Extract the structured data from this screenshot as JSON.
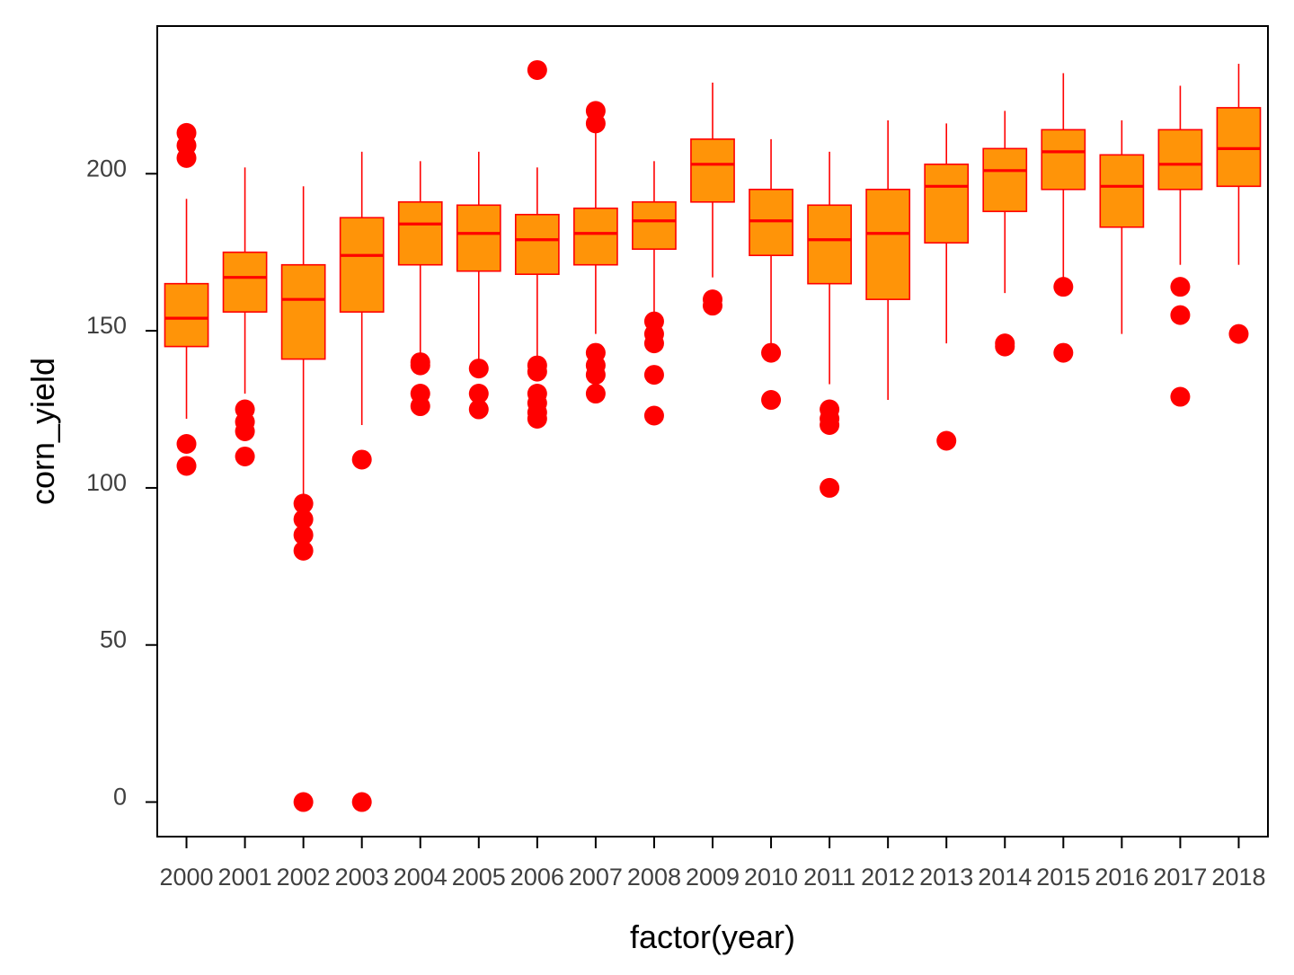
{
  "chart_data": {
    "type": "boxplot",
    "title": "",
    "xlabel": "factor(year)",
    "ylabel": "corn_yield",
    "ylim": [
      -11,
      247
    ],
    "yticks": [
      0,
      50,
      100,
      150,
      200
    ],
    "grid": false,
    "legend": "none",
    "colors": {
      "box_fill": "#ff9408",
      "box_stroke": "#ff0000",
      "outlier": "#ff0000",
      "frame": "#000000",
      "tick_label": "#404040"
    },
    "categories": [
      "2000",
      "2001",
      "2002",
      "2003",
      "2004",
      "2005",
      "2006",
      "2007",
      "2008",
      "2009",
      "2010",
      "2011",
      "2012",
      "2013",
      "2014",
      "2015",
      "2016",
      "2017",
      "2018"
    ],
    "boxes": [
      {
        "q1": 145,
        "median": 154,
        "q3": 165,
        "whisker_low": 122,
        "whisker_high": 192,
        "outliers": [
          107,
          114,
          205,
          209,
          213
        ]
      },
      {
        "q1": 156,
        "median": 167,
        "q3": 175,
        "whisker_low": 130,
        "whisker_high": 202,
        "outliers": [
          110,
          118,
          121,
          125
        ]
      },
      {
        "q1": 141,
        "median": 160,
        "q3": 171,
        "whisker_low": 97,
        "whisker_high": 196,
        "outliers": [
          0,
          80,
          85,
          90,
          95
        ]
      },
      {
        "q1": 156,
        "median": 174,
        "q3": 186,
        "whisker_low": 120,
        "whisker_high": 207,
        "outliers": [
          0,
          109
        ]
      },
      {
        "q1": 171,
        "median": 184,
        "q3": 191,
        "whisker_low": 142,
        "whisker_high": 204,
        "outliers": [
          126,
          130,
          139,
          140
        ]
      },
      {
        "q1": 169,
        "median": 181,
        "q3": 190,
        "whisker_low": 140,
        "whisker_high": 207,
        "outliers": [
          125,
          130,
          138
        ]
      },
      {
        "q1": 168,
        "median": 179,
        "q3": 187,
        "whisker_low": 141,
        "whisker_high": 202,
        "outliers": [
          122,
          124,
          127,
          130,
          137,
          139,
          233
        ]
      },
      {
        "q1": 171,
        "median": 181,
        "q3": 189,
        "whisker_low": 149,
        "whisker_high": 213,
        "outliers": [
          130,
          136,
          139,
          143,
          216,
          220
        ]
      },
      {
        "q1": 176,
        "median": 185,
        "q3": 191,
        "whisker_low": 156,
        "whisker_high": 204,
        "outliers": [
          123,
          136,
          146,
          149,
          153
        ]
      },
      {
        "q1": 191,
        "median": 203,
        "q3": 211,
        "whisker_low": 167,
        "whisker_high": 229,
        "outliers": [
          158,
          160
        ]
      },
      {
        "q1": 174,
        "median": 185,
        "q3": 195,
        "whisker_low": 145,
        "whisker_high": 211,
        "outliers": [
          128,
          143
        ]
      },
      {
        "q1": 165,
        "median": 179,
        "q3": 190,
        "whisker_low": 133,
        "whisker_high": 207,
        "outliers": [
          100,
          120,
          122,
          125
        ]
      },
      {
        "q1": 160,
        "median": 181,
        "q3": 195,
        "whisker_low": 128,
        "whisker_high": 217,
        "outliers": []
      },
      {
        "q1": 178,
        "median": 196,
        "q3": 203,
        "whisker_low": 146,
        "whisker_high": 216,
        "outliers": [
          115
        ]
      },
      {
        "q1": 188,
        "median": 201,
        "q3": 208,
        "whisker_low": 162,
        "whisker_high": 220,
        "outliers": [
          145,
          146
        ]
      },
      {
        "q1": 195,
        "median": 207,
        "q3": 214,
        "whisker_low": 166,
        "whisker_high": 232,
        "outliers": [
          143,
          164
        ]
      },
      {
        "q1": 183,
        "median": 196,
        "q3": 206,
        "whisker_low": 149,
        "whisker_high": 217,
        "outliers": []
      },
      {
        "q1": 195,
        "median": 203,
        "q3": 214,
        "whisker_low": 171,
        "whisker_high": 228,
        "outliers": [
          129,
          155,
          164
        ]
      },
      {
        "q1": 196,
        "median": 208,
        "q3": 221,
        "whisker_low": 171,
        "whisker_high": 235,
        "outliers": [
          149
        ]
      }
    ]
  }
}
